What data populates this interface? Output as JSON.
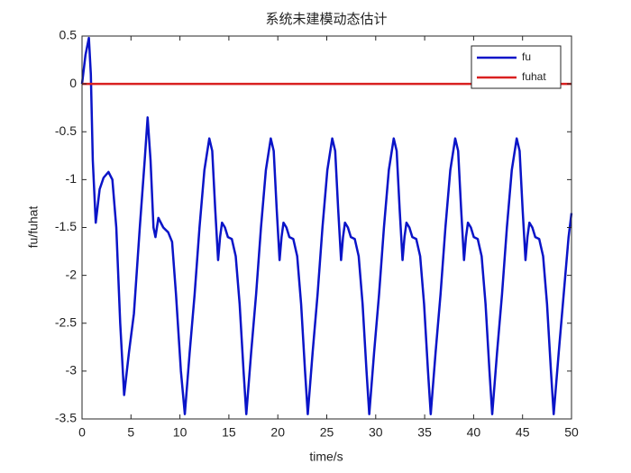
{
  "chart_data": {
    "type": "line",
    "title": "系统未建模动态估计",
    "x_label": "time/s",
    "y_label": "fu/fuhat",
    "xlim": [
      0,
      50
    ],
    "ylim": [
      -3.5,
      0.5
    ],
    "xticks": [
      0,
      5,
      10,
      15,
      20,
      25,
      30,
      35,
      40,
      45,
      50
    ],
    "yticks": [
      0.5,
      0,
      -0.5,
      -1,
      -1.5,
      -2,
      -2.5,
      -3,
      -3.5
    ],
    "legend": "top-right",
    "series": [
      {
        "name": "fu",
        "color": "#0a14c8",
        "x": [
          0,
          0.35,
          0.7,
          0.9,
          1.1,
          1.4,
          1.8,
          2.2,
          2.7,
          3.1,
          3.5,
          3.9,
          4.3,
          4.8,
          5.3,
          5.9,
          6.4,
          6.7,
          7.0,
          7.3,
          7.5,
          7.8,
          8.3,
          8.8,
          9.2,
          9.6,
          10.1,
          10.5,
          11,
          11.5,
          12,
          12.5,
          13,
          13.3,
          13.6,
          13.9,
          14.1,
          14.3,
          14.6,
          14.9,
          15.3,
          15.7,
          16.1,
          16.5,
          16.78,
          17.28,
          17.78,
          18.28,
          18.78,
          19.28,
          19.58,
          19.88,
          20.18,
          20.38,
          20.58,
          20.88,
          21.18,
          21.58,
          21.98,
          22.38,
          22.78,
          23.06,
          23.56,
          24.06,
          24.56,
          25.06,
          25.56,
          25.86,
          26.16,
          26.46,
          26.66,
          26.86,
          27.16,
          27.46,
          27.86,
          28.26,
          28.66,
          29.06,
          29.34,
          29.84,
          30.34,
          30.84,
          31.34,
          31.84,
          32.14,
          32.44,
          32.74,
          32.94,
          33.14,
          33.44,
          33.74,
          34.14,
          34.54,
          34.94,
          35.34,
          35.62,
          36.12,
          36.62,
          37.12,
          37.62,
          38.12,
          38.42,
          38.72,
          39.02,
          39.22,
          39.42,
          39.72,
          40.02,
          40.42,
          40.82,
          41.22,
          41.62,
          41.9,
          42.4,
          42.9,
          43.4,
          43.9,
          44.4,
          44.7,
          45.0,
          45.3,
          45.5,
          45.7,
          46.0,
          46.3,
          46.7,
          47.1,
          47.5,
          47.9,
          48.18,
          48.7,
          49.2,
          49.7,
          50
        ],
        "values": [
          0,
          0.3,
          0.48,
          0.1,
          -0.8,
          -1.45,
          -1.1,
          -0.98,
          -0.92,
          -1.0,
          -1.5,
          -2.5,
          -3.25,
          -2.8,
          -2.4,
          -1.5,
          -0.8,
          -0.35,
          -0.8,
          -1.5,
          -1.6,
          -1.4,
          -1.5,
          -1.55,
          -1.65,
          -2.2,
          -3.0,
          -3.45,
          -2.8,
          -2.2,
          -1.5,
          -0.9,
          -0.57,
          -0.7,
          -1.3,
          -1.84,
          -1.6,
          -1.45,
          -1.5,
          -1.6,
          -1.62,
          -1.8,
          -2.3,
          -3.0,
          -3.45,
          -2.8,
          -2.2,
          -1.5,
          -0.9,
          -0.57,
          -0.7,
          -1.3,
          -1.84,
          -1.6,
          -1.45,
          -1.5,
          -1.6,
          -1.62,
          -1.8,
          -2.3,
          -3.0,
          -3.45,
          -2.8,
          -2.2,
          -1.5,
          -0.9,
          -0.57,
          -0.7,
          -1.3,
          -1.84,
          -1.6,
          -1.45,
          -1.5,
          -1.6,
          -1.62,
          -1.8,
          -2.3,
          -3.0,
          -3.45,
          -2.8,
          -2.2,
          -1.5,
          -0.9,
          -0.57,
          -0.7,
          -1.3,
          -1.84,
          -1.6,
          -1.45,
          -1.5,
          -1.6,
          -1.62,
          -1.8,
          -2.3,
          -3.0,
          -3.45,
          -2.8,
          -2.2,
          -1.5,
          -0.9,
          -0.57,
          -0.7,
          -1.3,
          -1.84,
          -1.6,
          -1.45,
          -1.5,
          -1.6,
          -1.62,
          -1.8,
          -2.3,
          -3.0,
          -3.45,
          -2.8,
          -2.2,
          -1.5,
          -0.9,
          -0.57,
          -0.7,
          -1.3,
          -1.84,
          -1.6,
          -1.45,
          -1.5,
          -1.6,
          -1.62,
          -1.8,
          -2.3,
          -3.0,
          -3.45,
          -2.8,
          -2.2,
          -1.6,
          -1.35
        ]
      },
      {
        "name": "fuhat",
        "color": "#d92020",
        "x": [
          0,
          50
        ],
        "values": [
          0,
          0
        ]
      }
    ]
  }
}
